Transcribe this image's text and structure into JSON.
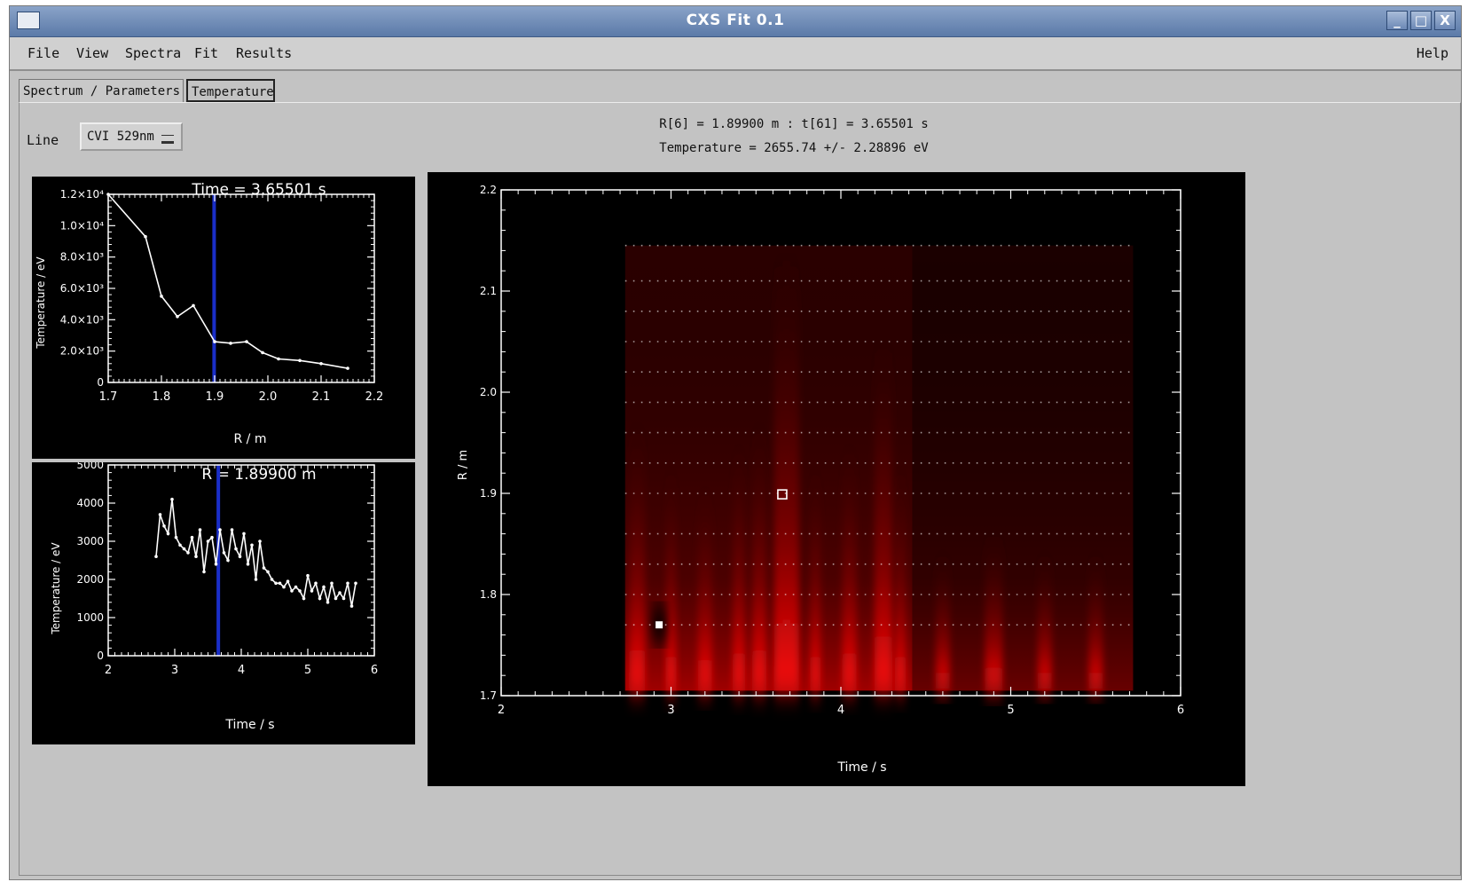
{
  "window": {
    "title": "CXS Fit 0.1",
    "minimize": "_",
    "maximize": "□",
    "close": "X"
  },
  "menu": [
    "File",
    "View",
    "Spectra",
    "Fit",
    "Results"
  ],
  "help_label": "Help",
  "tabs": [
    {
      "label": "Spectrum / Parameters",
      "active": false
    },
    {
      "label": "Temperature",
      "active": true
    }
  ],
  "line_selector": {
    "label": "Line",
    "value": "CVI 529nm"
  },
  "info": {
    "position": "R[6] = 1.89900 m : t[61] = 3.65501 s",
    "temperature": "Temperature = 2655.74 +/- 2.28896 eV"
  },
  "chart_data": [
    {
      "type": "line",
      "title": "Time = 3.65501 s",
      "xlabel": "R / m",
      "ylabel": "Temperature / eV",
      "xlim": [
        1.7,
        2.2
      ],
      "ylim": [
        0,
        12000
      ],
      "x_ticks": [
        "1.7",
        "1.8",
        "1.9",
        "2.0",
        "2.1",
        "2.2"
      ],
      "y_ticks": [
        "0",
        "2.0×10³",
        "4.0×10³",
        "6.0×10³",
        "8.0×10³",
        "1.0×10⁴",
        "1.2×10⁴"
      ],
      "x": [
        1.7,
        1.77,
        1.8,
        1.83,
        1.86,
        1.9,
        1.93,
        1.96,
        1.99,
        2.02,
        2.06,
        2.1,
        2.15
      ],
      "values": [
        12000,
        9300,
        5500,
        4200,
        4900,
        2600,
        2500,
        2600,
        1900,
        1500,
        1400,
        1200,
        900
      ],
      "marker_x": 1.899,
      "marker_color": "#1a2ec8"
    },
    {
      "type": "line",
      "title": "R = 1.89900 m",
      "xlabel": "Time / s",
      "ylabel": "Temperature / eV",
      "xlim": [
        2,
        6
      ],
      "ylim": [
        0,
        5000
      ],
      "x_ticks": [
        "2",
        "3",
        "4",
        "5",
        "6"
      ],
      "y_ticks": [
        "0",
        "1000",
        "2000",
        "3000",
        "4000",
        "5000"
      ],
      "x": [
        2.72,
        2.78,
        2.84,
        2.9,
        2.96,
        3.02,
        3.08,
        3.14,
        3.2,
        3.26,
        3.32,
        3.38,
        3.44,
        3.5,
        3.56,
        3.62,
        3.68,
        3.74,
        3.8,
        3.86,
        3.92,
        3.98,
        4.04,
        4.1,
        4.16,
        4.22,
        4.28,
        4.34,
        4.4,
        4.46,
        4.52,
        4.58,
        4.64,
        4.7,
        4.76,
        4.82,
        4.88,
        4.94,
        5.0,
        5.06,
        5.12,
        5.18,
        5.24,
        5.3,
        5.36,
        5.42,
        5.48,
        5.54,
        5.6,
        5.66,
        5.72
      ],
      "values": [
        2600,
        3700,
        3400,
        3200,
        4100,
        3100,
        2900,
        2800,
        2700,
        3100,
        2600,
        3300,
        2200,
        3000,
        3100,
        2400,
        3300,
        2700,
        2500,
        3300,
        2800,
        2600,
        3200,
        2400,
        2900,
        2000,
        3000,
        2300,
        2200,
        2000,
        1900,
        1900,
        1800,
        1950,
        1700,
        1800,
        1700,
        1500,
        2100,
        1700,
        1900,
        1500,
        1800,
        1400,
        1900,
        1500,
        1650,
        1500,
        1900,
        1300,
        1900
      ],
      "marker_x": 3.655,
      "marker_color": "#1a2ec8"
    },
    {
      "type": "heatmap",
      "xlabel": "Time / s",
      "ylabel": "R / m",
      "xlim": [
        2,
        6
      ],
      "ylim": [
        1.7,
        2.2
      ],
      "x_ticks": [
        "2",
        "3",
        "4",
        "5",
        "6"
      ],
      "y_ticks": [
        "1.7",
        "1.8",
        "1.9",
        "2.0",
        "2.1",
        "2.2"
      ],
      "data_x_range": [
        2.73,
        5.72
      ],
      "data_y_range": [
        1.705,
        2.145
      ],
      "grid_rows_r": [
        1.77,
        1.8,
        1.83,
        1.86,
        1.9,
        1.93,
        1.96,
        1.99,
        2.02,
        2.05,
        2.08,
        2.11,
        2.145
      ],
      "selected_point": {
        "t": 3.655,
        "r": 1.899
      },
      "highlight_point": {
        "t": 2.93,
        "r": 1.77
      },
      "colormap": "black-red"
    }
  ]
}
